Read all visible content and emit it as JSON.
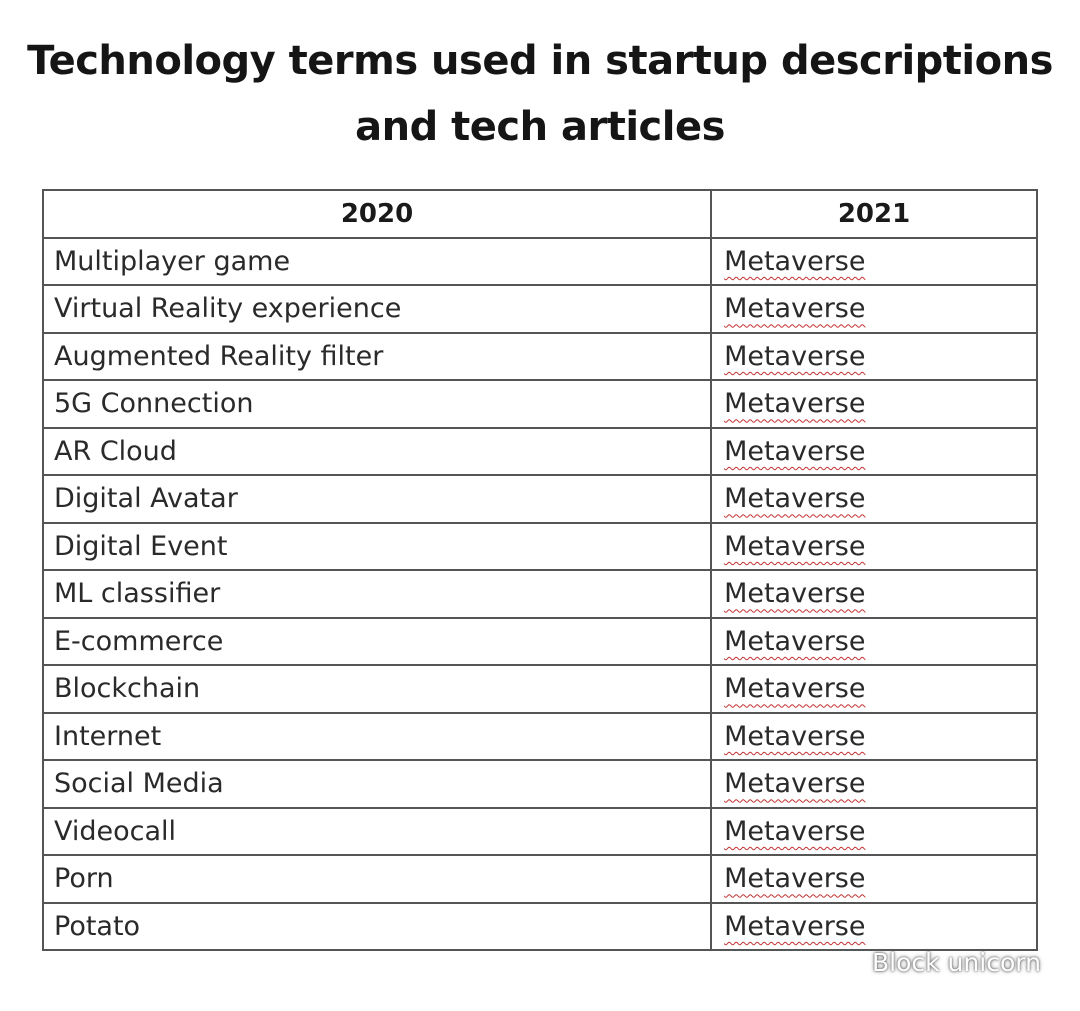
{
  "title": {
    "line1": "Technology terms used in startup descriptions",
    "line2": "and tech articles"
  },
  "table": {
    "headers": [
      "2020",
      "2021"
    ],
    "rows": [
      {
        "term": "Multiplayer game",
        "replacement": "Metaverse"
      },
      {
        "term": "Virtual Reality experience",
        "replacement": "Metaverse"
      },
      {
        "term": "Augmented Reality filter",
        "replacement": "Metaverse"
      },
      {
        "term": "5G Connection",
        "replacement": "Metaverse"
      },
      {
        "term": "AR Cloud",
        "replacement": "Metaverse"
      },
      {
        "term": "Digital Avatar",
        "replacement": "Metaverse"
      },
      {
        "term": "Digital Event",
        "replacement": "Metaverse"
      },
      {
        "term": "ML classifier",
        "replacement": "Metaverse"
      },
      {
        "term": "E-commerce",
        "replacement": "Metaverse"
      },
      {
        "term": "Blockchain",
        "replacement": "Metaverse"
      },
      {
        "term": "Internet",
        "replacement": "Metaverse"
      },
      {
        "term": "Social Media",
        "replacement": "Metaverse"
      },
      {
        "term": "Videocall",
        "replacement": "Metaverse"
      },
      {
        "term": "Porn",
        "replacement": "Metaverse"
      },
      {
        "term": "Potato",
        "replacement": "Metaverse"
      }
    ]
  },
  "watermark": {
    "text": "Block unicorn",
    "icon": "wechat-icon"
  },
  "colors": {
    "border": "#555555",
    "spellcheck_underline": "#c23030",
    "text": "#2a2a2a"
  }
}
